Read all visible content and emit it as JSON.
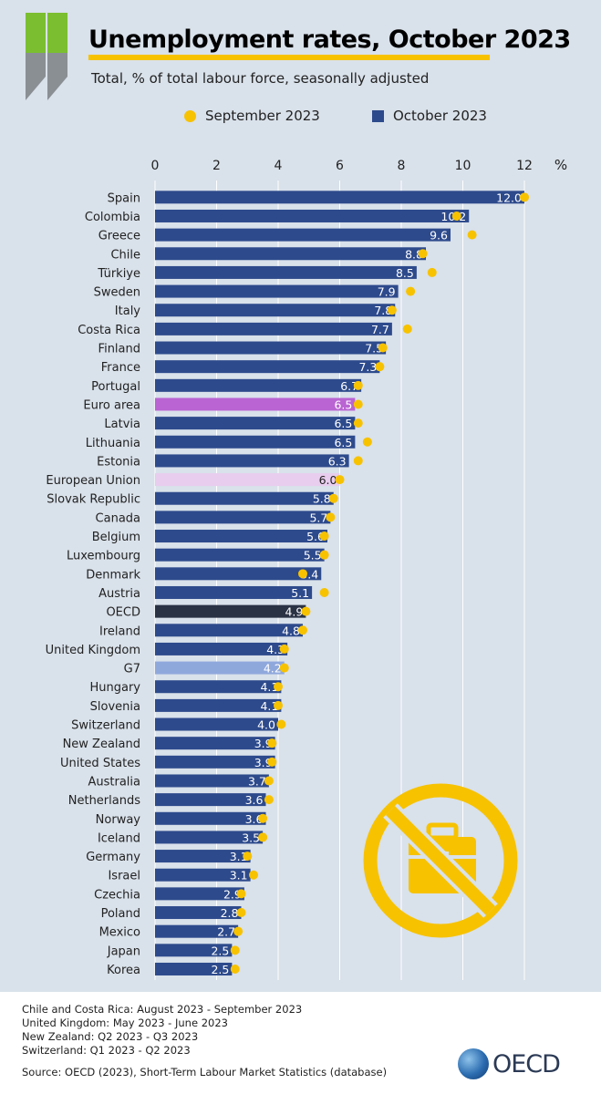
{
  "title": "Unemployment rates, October 2023",
  "subtitle": "Total, % of total labour force, seasonally adjusted",
  "legend": {
    "sep": "September 2023",
    "oct": "October 2023"
  },
  "colors": {
    "bar": "#2d4a8c",
    "euro_area": "#b964d2",
    "european_union": "#e8cdee",
    "oecd": "#2a3344",
    "g7": "#8fa8dc",
    "dot": "#f7c200",
    "background": "#d9e1ea"
  },
  "chart_data": {
    "type": "bar",
    "orientation": "horizontal",
    "xunit": "%",
    "xlim": [
      0,
      12
    ],
    "xticks": [
      0,
      2,
      4,
      6,
      8,
      10,
      12
    ],
    "categories": [
      "Spain",
      "Colombia",
      "Greece",
      "Chile",
      "Türkiye",
      "Sweden",
      "Italy",
      "Costa Rica",
      "Finland",
      "France",
      "Portugal",
      "Euro area",
      "Latvia",
      "Lithuania",
      "Estonia",
      "European Union",
      "Slovak Republic",
      "Canada",
      "Belgium",
      "Luxembourg",
      "Denmark",
      "Austria",
      "OECD",
      "Ireland",
      "United Kingdom",
      "G7",
      "Hungary",
      "Slovenia",
      "Switzerland",
      "New Zealand",
      "United States",
      "Australia",
      "Netherlands",
      "Norway",
      "Iceland",
      "Germany",
      "Israel",
      "Czechia",
      "Poland",
      "Mexico",
      "Japan",
      "Korea"
    ],
    "series": [
      {
        "name": "October 2023",
        "values": [
          12.0,
          10.2,
          9.6,
          8.8,
          8.5,
          7.9,
          7.8,
          7.7,
          7.5,
          7.3,
          6.7,
          6.5,
          6.5,
          6.5,
          6.3,
          6.0,
          5.8,
          5.7,
          5.6,
          5.5,
          5.4,
          5.1,
          4.9,
          4.8,
          4.3,
          4.2,
          4.1,
          4.1,
          4.0,
          3.9,
          3.9,
          3.7,
          3.6,
          3.6,
          3.5,
          3.1,
          3.1,
          2.9,
          2.8,
          2.7,
          2.5,
          2.5
        ]
      },
      {
        "name": "September 2023",
        "values": [
          12.0,
          9.8,
          10.3,
          8.7,
          9.0,
          8.3,
          7.7,
          8.2,
          7.4,
          7.3,
          6.6,
          6.6,
          6.6,
          6.9,
          6.6,
          6.0,
          5.8,
          5.7,
          5.5,
          5.5,
          4.8,
          5.5,
          4.9,
          4.8,
          4.2,
          4.2,
          4.0,
          4.0,
          4.1,
          3.8,
          3.8,
          3.7,
          3.7,
          3.5,
          3.5,
          3.0,
          3.2,
          2.8,
          2.8,
          2.7,
          2.6,
          2.6
        ]
      }
    ],
    "labels": [
      "12.0",
      "10.2",
      "9.6",
      "8.8",
      "8.5",
      "7.9",
      "7.8",
      "7.7",
      "7.5",
      "7.3",
      "6.7",
      "6.5",
      "6.5",
      "6.5",
      "6.3",
      "6.0",
      "5.8",
      "5.7",
      "5.6",
      "5.5",
      "5.4",
      "5.1",
      "4.9",
      "4.8",
      "4.3",
      "4.2",
      "4.1",
      "4.1",
      "4.0",
      "3.9",
      "3.9",
      "3.7",
      "3.6",
      "3.6",
      "3.5",
      "3.1",
      "3.1",
      "2.9",
      "2.8",
      "2.7",
      "2.5",
      "2.5"
    ],
    "highlights": {
      "Euro area": "euro_area",
      "European Union": "european_union",
      "OECD": "oecd",
      "G7": "g7"
    }
  },
  "footer": {
    "notes": [
      "Chile and Costa Rica: August 2023 - September 2023",
      "United Kingdom: May 2023 - June 2023",
      "New Zealand: Q2 2023 - Q3 2023",
      "Switzerland: Q1 2023 - Q2 2023"
    ],
    "source": "Source: OECD (2023), Short-Term Labour Market Statistics (database)",
    "logo": "OECD"
  },
  "icons": {
    "brand": "oecd-chevrons-icon",
    "decoration": "no-briefcase-icon"
  }
}
